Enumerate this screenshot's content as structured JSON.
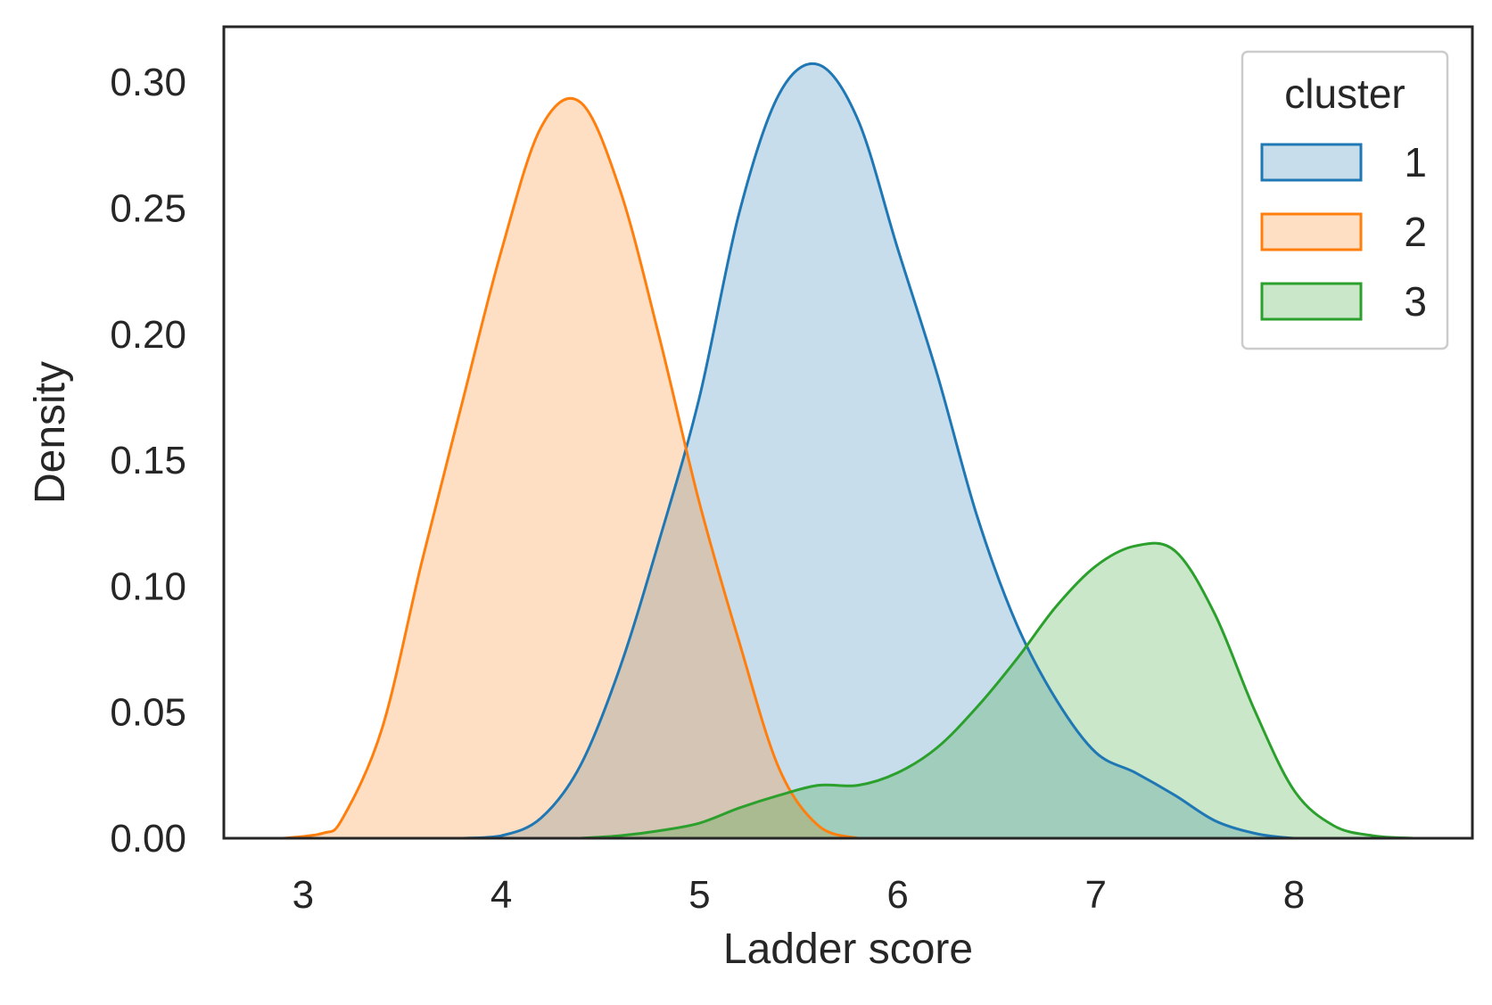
{
  "chart_data": {
    "type": "area",
    "xlabel": "Ladder score",
    "ylabel": "Density",
    "xlim": [
      2.6,
      8.9
    ],
    "ylim": [
      0,
      0.322
    ],
    "x_ticks": [
      3,
      4,
      5,
      6,
      7,
      8
    ],
    "y_ticks": [
      0,
      0.05,
      0.1,
      0.15,
      0.2,
      0.25,
      0.3
    ],
    "y_tick_labels": [
      "0.00",
      "0.05",
      "0.10",
      "0.15",
      "0.20",
      "0.25",
      "0.30"
    ],
    "x_tick_labels": [
      "3",
      "4",
      "5",
      "6",
      "7",
      "8"
    ],
    "grid": false,
    "legend": {
      "title": "cluster",
      "placement": "top-right"
    },
    "series": [
      {
        "name": "1",
        "color": "#1f77b4",
        "x": [
          3.8,
          4.0,
          4.2,
          4.4,
          4.6,
          4.8,
          5.0,
          5.2,
          5.4,
          5.6,
          5.8,
          6.0,
          6.2,
          6.4,
          6.6,
          6.8,
          7.0,
          7.2,
          7.4,
          7.6,
          7.8,
          8.0,
          8.2
        ],
        "y": [
          0.0,
          0.001,
          0.008,
          0.029,
          0.068,
          0.119,
          0.175,
          0.248,
          0.295,
          0.307,
          0.285,
          0.234,
          0.184,
          0.128,
          0.085,
          0.055,
          0.034,
          0.026,
          0.017,
          0.007,
          0.002,
          0.0,
          0.0
        ]
      },
      {
        "name": "2",
        "color": "#ff7f0e",
        "x": [
          2.9,
          3.1,
          3.2,
          3.4,
          3.6,
          3.8,
          4.0,
          4.2,
          4.4,
          4.6,
          4.8,
          5.0,
          5.2,
          5.4,
          5.6,
          5.8
        ],
        "y": [
          0.0,
          0.002,
          0.008,
          0.044,
          0.11,
          0.172,
          0.233,
          0.282,
          0.292,
          0.257,
          0.198,
          0.133,
          0.078,
          0.028,
          0.005,
          0.0
        ]
      },
      {
        "name": "3",
        "color": "#2ca02c",
        "x": [
          4.4,
          4.6,
          4.8,
          5.0,
          5.2,
          5.4,
          5.6,
          5.8,
          6.0,
          6.2,
          6.4,
          6.6,
          6.8,
          7.0,
          7.2,
          7.4,
          7.6,
          7.8,
          8.0,
          8.2,
          8.4,
          8.6
        ],
        "y": [
          0.0,
          0.001,
          0.003,
          0.006,
          0.012,
          0.017,
          0.021,
          0.021,
          0.026,
          0.036,
          0.052,
          0.071,
          0.092,
          0.108,
          0.116,
          0.114,
          0.089,
          0.051,
          0.019,
          0.005,
          0.001,
          0.0
        ]
      }
    ]
  }
}
